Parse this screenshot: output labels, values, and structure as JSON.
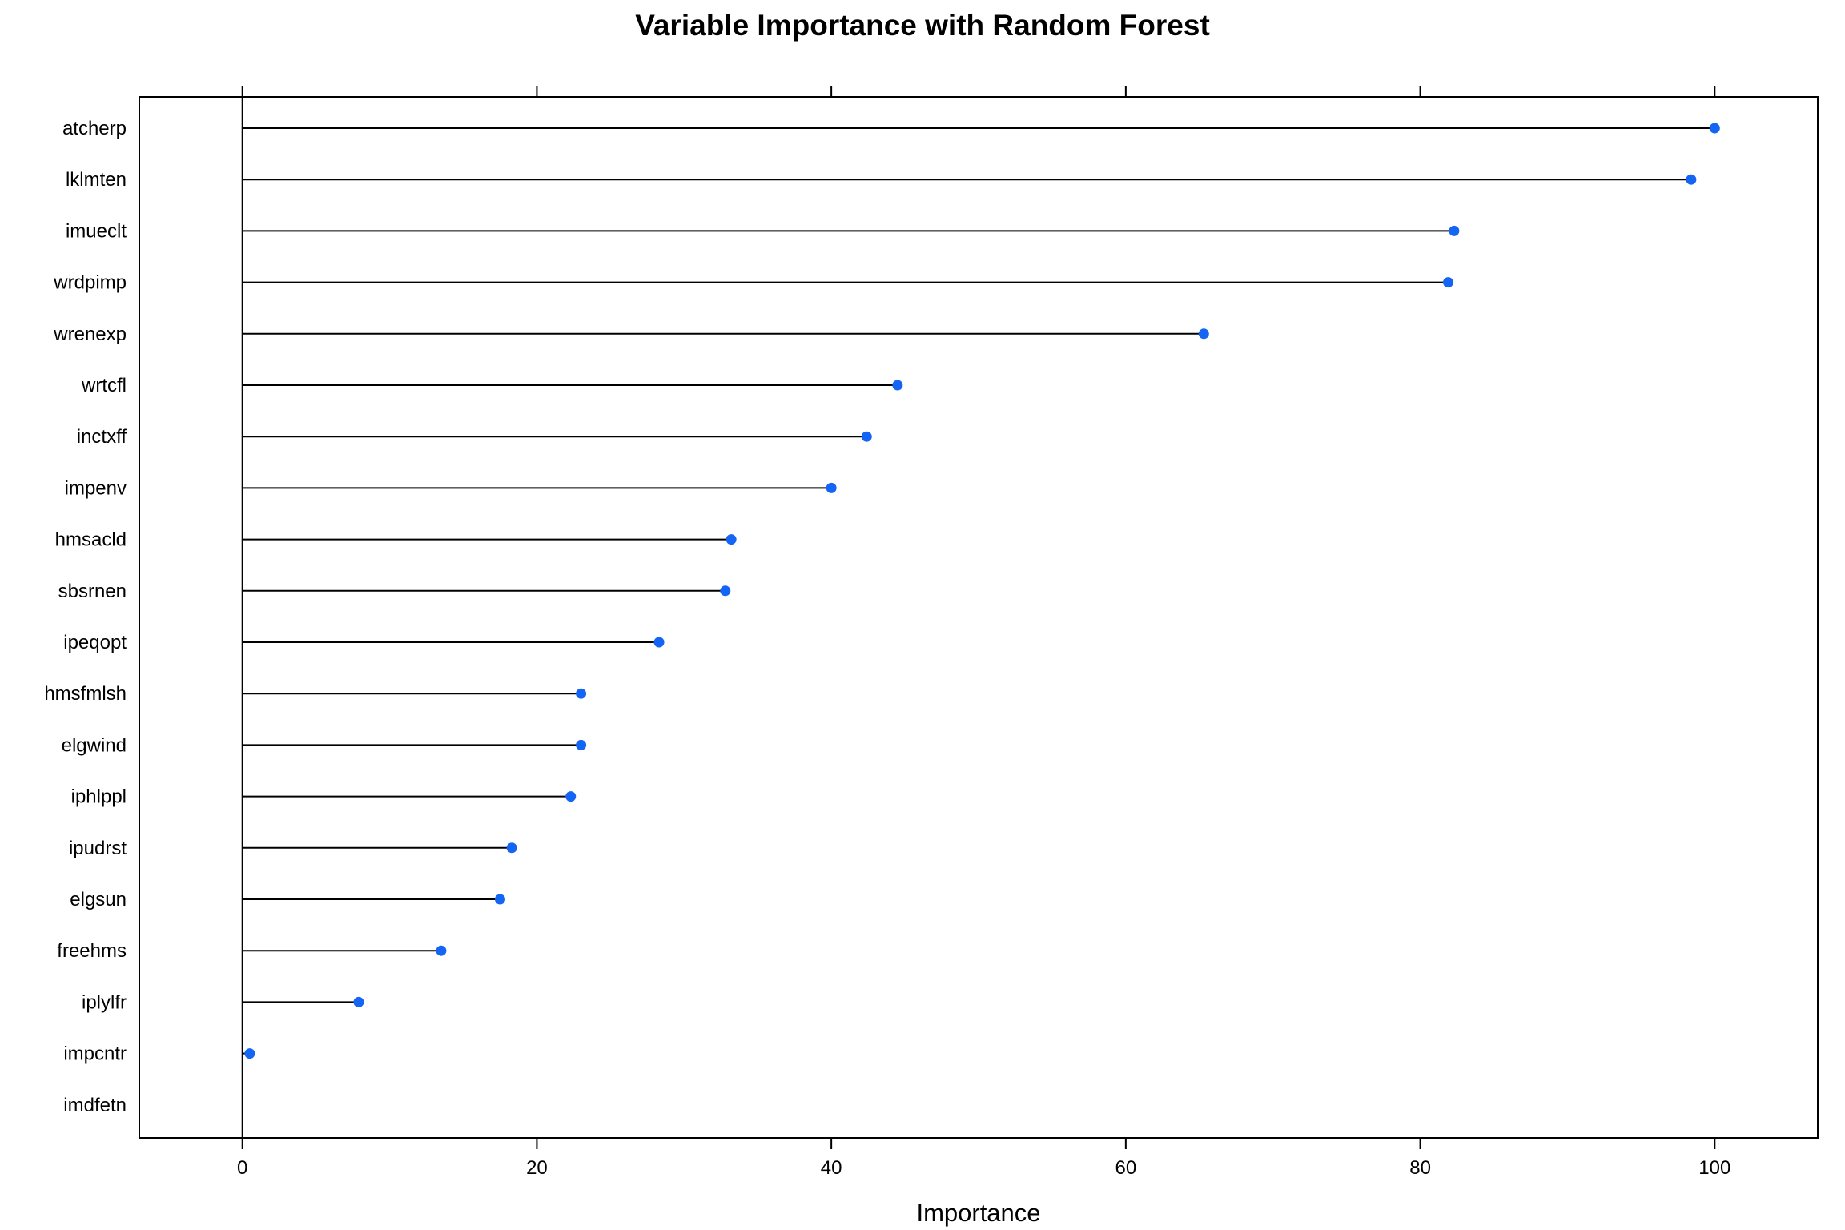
{
  "chart_data": {
    "type": "lollipop",
    "title": "Variable Importance with Random Forest",
    "xlabel": "Importance",
    "ylabel": "",
    "xlim": [
      -7,
      107
    ],
    "xticks": [
      0,
      20,
      40,
      60,
      80,
      100
    ],
    "grid": false,
    "legend": "none",
    "point_color": "#1565f5",
    "categories": [
      "atcherp",
      "lklmten",
      "imueclt",
      "wrdpimp",
      "wrenexp",
      "wrtcfl",
      "inctxff",
      "impenv",
      "hmsacld",
      "sbsrnen",
      "ipeqopt",
      "hmsfmlsh",
      "elgwind",
      "iphlppl",
      "ipudrst",
      "elgsun",
      "freehms",
      "iplylfr",
      "impcntr",
      "imdfetn"
    ],
    "values": [
      100.0,
      98.4,
      82.3,
      81.9,
      65.3,
      44.5,
      42.4,
      40.0,
      33.2,
      32.8,
      28.3,
      23.0,
      23.0,
      22.3,
      18.3,
      17.5,
      13.5,
      7.9,
      0.5,
      0.0
    ]
  }
}
